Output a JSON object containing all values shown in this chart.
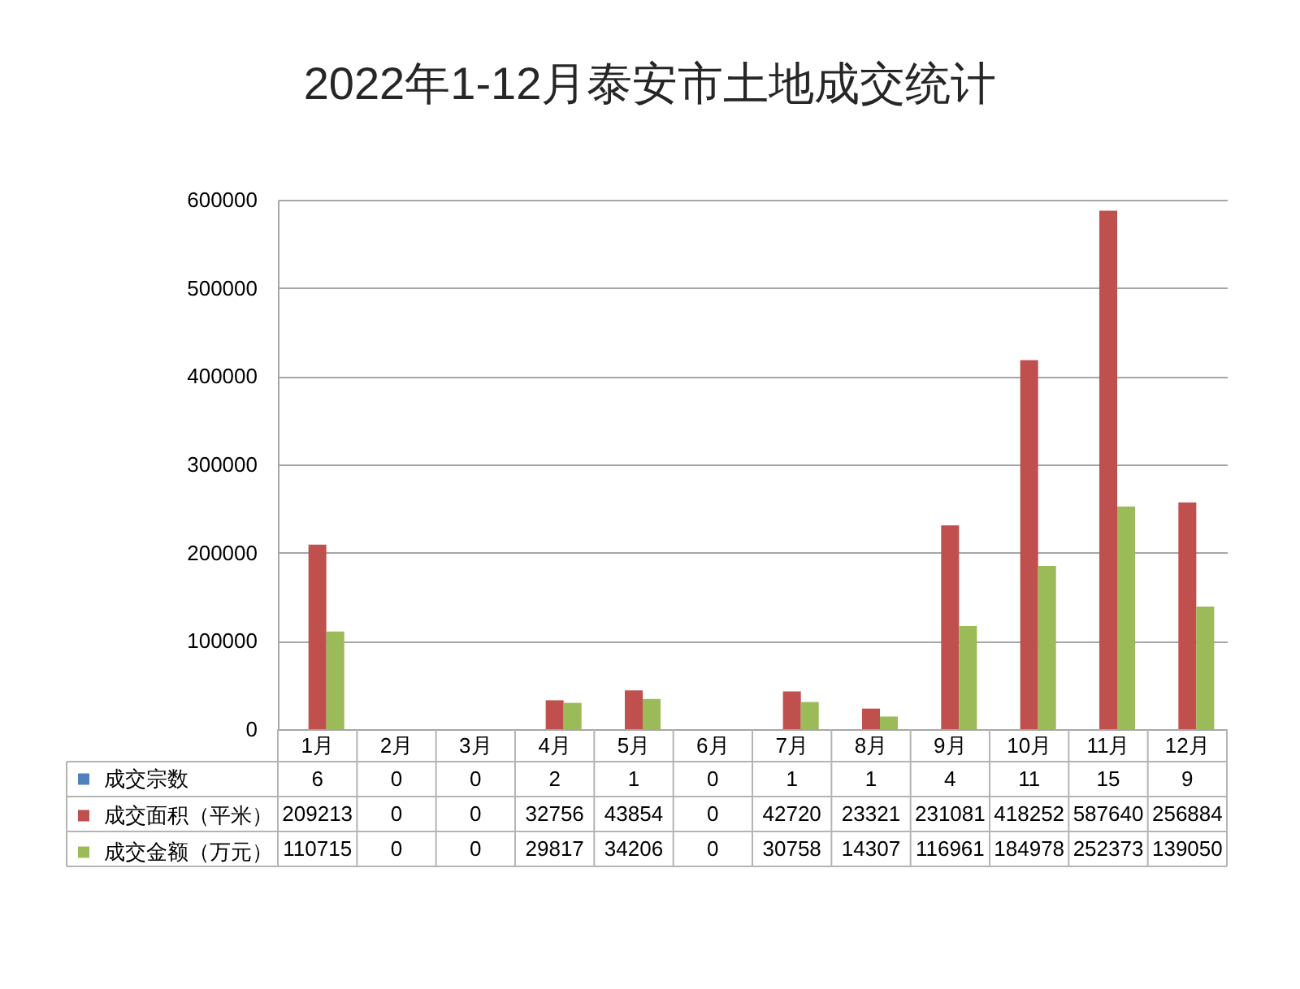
{
  "chart_data": {
    "type": "bar",
    "title": "2022年1-12月泰安市土地成交统计",
    "categories": [
      "1月",
      "2月",
      "3月",
      "4月",
      "5月",
      "6月",
      "7月",
      "8月",
      "9月",
      "10月",
      "11月",
      "12月"
    ],
    "series": [
      {
        "name": "成交宗数",
        "color": "#4f81bd",
        "values": [
          6,
          0,
          0,
          2,
          1,
          0,
          1,
          1,
          4,
          11,
          15,
          9
        ]
      },
      {
        "name": "成交面积（平米）",
        "color": "#c0504d",
        "values": [
          209213,
          0,
          0,
          32756,
          43854,
          0,
          42720,
          23321,
          231081,
          418252,
          587640,
          256884
        ]
      },
      {
        "name": "成交金额（万元）",
        "color": "#9bbb59",
        "values": [
          110715,
          0,
          0,
          29817,
          34206,
          0,
          30758,
          14307,
          116961,
          184978,
          252373,
          139050
        ]
      }
    ],
    "ylim": [
      0,
      600000
    ],
    "yticks": [
      0,
      100000,
      200000,
      300000,
      400000,
      500000,
      600000
    ],
    "grid": "y",
    "legend": "bottom left",
    "data_labels": true
  }
}
